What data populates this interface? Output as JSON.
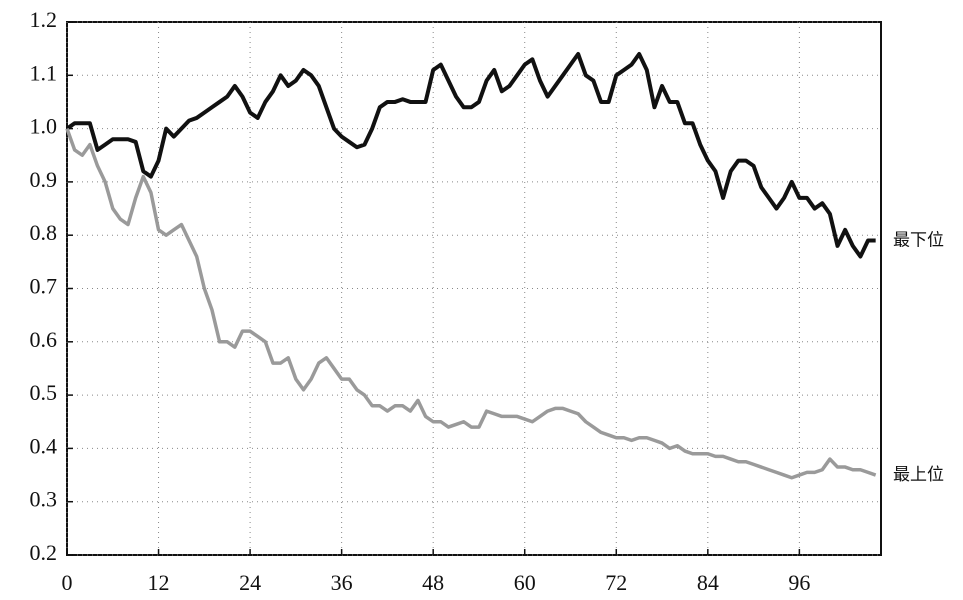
{
  "chart_data": {
    "type": "line",
    "x": [
      0,
      1,
      2,
      3,
      4,
      5,
      6,
      7,
      8,
      9,
      10,
      11,
      12,
      13,
      14,
      15,
      16,
      17,
      18,
      19,
      20,
      21,
      22,
      23,
      24,
      25,
      26,
      27,
      28,
      29,
      30,
      31,
      32,
      33,
      34,
      35,
      36,
      37,
      38,
      39,
      40,
      41,
      42,
      43,
      44,
      45,
      46,
      47,
      48,
      49,
      50,
      51,
      52,
      53,
      54,
      55,
      56,
      57,
      58,
      59,
      60,
      61,
      62,
      63,
      64,
      65,
      66,
      67,
      68,
      69,
      70,
      71,
      72,
      73,
      74,
      75,
      76,
      77,
      78,
      79,
      80,
      81,
      82,
      83,
      84,
      85,
      86,
      87,
      88,
      89,
      90,
      91,
      92,
      93,
      94,
      95,
      96,
      97,
      98,
      99,
      100,
      101,
      102,
      103,
      104,
      105,
      106
    ],
    "series": [
      {
        "name": "最下位",
        "color": "#111111",
        "values": [
          1.0,
          1.01,
          1.01,
          1.01,
          0.96,
          0.97,
          0.98,
          0.98,
          0.98,
          0.975,
          0.92,
          0.91,
          0.94,
          1.0,
          0.985,
          1.0,
          1.015,
          1.02,
          1.03,
          1.04,
          1.05,
          1.06,
          1.08,
          1.06,
          1.03,
          1.02,
          1.05,
          1.07,
          1.1,
          1.08,
          1.09,
          1.11,
          1.1,
          1.08,
          1.04,
          1.0,
          0.985,
          0.975,
          0.965,
          0.97,
          1.0,
          1.04,
          1.05,
          1.05,
          1.055,
          1.05,
          1.05,
          1.05,
          1.11,
          1.12,
          1.09,
          1.06,
          1.04,
          1.04,
          1.05,
          1.09,
          1.11,
          1.07,
          1.08,
          1.1,
          1.12,
          1.13,
          1.09,
          1.06,
          1.08,
          1.1,
          1.12,
          1.14,
          1.1,
          1.09,
          1.05,
          1.05,
          1.1,
          1.11,
          1.12,
          1.14,
          1.11,
          1.04,
          1.08,
          1.05,
          1.05,
          1.01,
          1.01,
          0.97,
          0.94,
          0.92,
          0.87,
          0.92,
          0.94,
          0.94,
          0.93,
          0.89,
          0.87,
          0.85,
          0.87,
          0.9,
          0.87,
          0.87,
          0.85,
          0.86,
          0.84,
          0.78,
          0.81,
          0.78,
          0.76,
          0.79,
          0.79
        ]
      },
      {
        "name": "最上位",
        "color": "#9a9a9a",
        "values": [
          1.0,
          0.96,
          0.95,
          0.97,
          0.93,
          0.9,
          0.85,
          0.83,
          0.82,
          0.87,
          0.91,
          0.88,
          0.81,
          0.8,
          0.81,
          0.82,
          0.79,
          0.76,
          0.7,
          0.66,
          0.6,
          0.6,
          0.59,
          0.62,
          0.62,
          0.61,
          0.6,
          0.56,
          0.56,
          0.57,
          0.53,
          0.51,
          0.53,
          0.56,
          0.57,
          0.55,
          0.53,
          0.53,
          0.51,
          0.5,
          0.48,
          0.48,
          0.47,
          0.48,
          0.48,
          0.47,
          0.49,
          0.46,
          0.45,
          0.45,
          0.44,
          0.445,
          0.45,
          0.44,
          0.44,
          0.47,
          0.465,
          0.46,
          0.46,
          0.46,
          0.455,
          0.45,
          0.46,
          0.47,
          0.475,
          0.475,
          0.47,
          0.465,
          0.45,
          0.44,
          0.43,
          0.425,
          0.42,
          0.42,
          0.415,
          0.42,
          0.42,
          0.415,
          0.41,
          0.4,
          0.405,
          0.395,
          0.39,
          0.39,
          0.39,
          0.385,
          0.385,
          0.38,
          0.375,
          0.375,
          0.37,
          0.365,
          0.36,
          0.355,
          0.35,
          0.345,
          0.35,
          0.355,
          0.355,
          0.36,
          0.38,
          0.365,
          0.365,
          0.36,
          0.36,
          0.355,
          0.35
        ]
      }
    ],
    "xlim": [
      0,
      106.7
    ],
    "xticks": [
      0,
      12,
      24,
      36,
      48,
      60,
      72,
      84,
      96
    ],
    "ylim": [
      0.2,
      1.2
    ],
    "yticks": [
      0.2,
      0.3,
      0.4,
      0.5,
      0.6,
      0.7,
      0.8,
      0.9,
      {
        "value": 1,
        "label": "1.0"
      },
      1.1,
      1.2
    ],
    "grid": true
  }
}
